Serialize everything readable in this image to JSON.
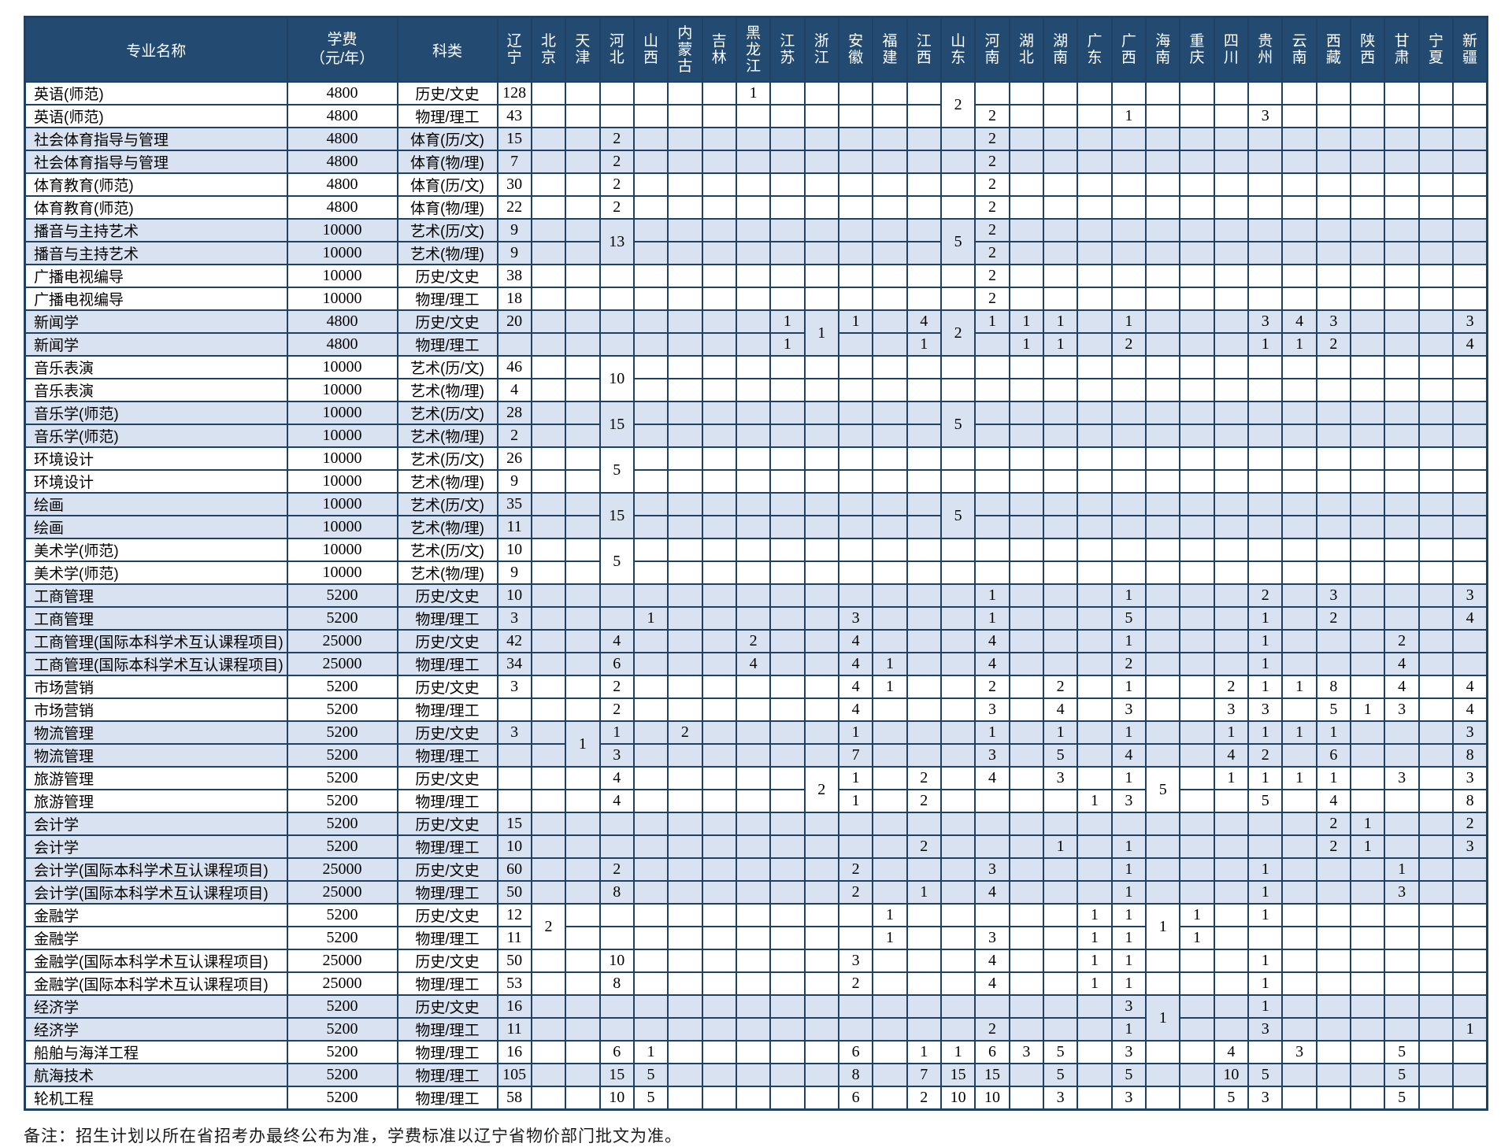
{
  "table": {
    "headers": {
      "major": "专业名称",
      "fee_line1": "学费",
      "fee_line2": "（元/年）",
      "category": "科类"
    },
    "provinces": [
      "辽宁",
      "北京",
      "天津",
      "河北",
      "山西",
      "内蒙古",
      "吉林",
      "黑龙江",
      "江苏",
      "浙江",
      "安徽",
      "福建",
      "江西",
      "山东",
      "河南",
      "湖北",
      "湖南",
      "广东",
      "广西",
      "海南",
      "重庆",
      "四川",
      "贵州",
      "云南",
      "西藏",
      "陕西",
      "甘肃",
      "宁夏",
      "新疆"
    ],
    "rows": [
      {
        "major": "英语(师范)",
        "fee": "4800",
        "category": "历史/文史",
        "shade": false,
        "cells": {
          "0": "128",
          "7": "1"
        },
        "merged": {
          "13": "2"
        },
        "skip": []
      },
      {
        "major": "英语(师范)",
        "fee": "4800",
        "category": "物理/理工",
        "shade": false,
        "cells": {
          "0": "43",
          "14": "2",
          "18": "1",
          "22": "3"
        },
        "merged": {},
        "skip": [
          13
        ]
      },
      {
        "major": "社会体育指导与管理",
        "fee": "4800",
        "category": "体育(历/文)",
        "shade": true,
        "cells": {
          "0": "15",
          "3": "2",
          "14": "2"
        },
        "merged": {},
        "skip": []
      },
      {
        "major": "社会体育指导与管理",
        "fee": "4800",
        "category": "体育(物/理)",
        "shade": true,
        "cells": {
          "0": "7",
          "3": "2",
          "14": "2"
        },
        "merged": {},
        "skip": []
      },
      {
        "major": "体育教育(师范)",
        "fee": "4800",
        "category": "体育(历/文)",
        "shade": false,
        "cells": {
          "0": "30",
          "3": "2",
          "14": "2"
        },
        "merged": {},
        "skip": []
      },
      {
        "major": "体育教育(师范)",
        "fee": "4800",
        "category": "体育(物/理)",
        "shade": false,
        "cells": {
          "0": "22",
          "3": "2",
          "14": "2"
        },
        "merged": {},
        "skip": []
      },
      {
        "major": "播音与主持艺术",
        "fee": "10000",
        "category": "艺术(历/文)",
        "shade": true,
        "cells": {
          "0": "9",
          "14": "2"
        },
        "merged": {
          "3": "13",
          "13": "5"
        },
        "skip": []
      },
      {
        "major": "播音与主持艺术",
        "fee": "10000",
        "category": "艺术(物/理)",
        "shade": true,
        "cells": {
          "0": "9",
          "14": "2"
        },
        "merged": {},
        "skip": [
          3,
          13
        ]
      },
      {
        "major": "广播电视编导",
        "fee": "10000",
        "category": "历史/文史",
        "shade": false,
        "cells": {
          "0": "38",
          "14": "2"
        },
        "merged": {},
        "skip": []
      },
      {
        "major": "广播电视编导",
        "fee": "10000",
        "category": "物理/理工",
        "shade": false,
        "cells": {
          "0": "18",
          "14": "2"
        },
        "merged": {},
        "skip": []
      },
      {
        "major": "新闻学",
        "fee": "4800",
        "category": "历史/文史",
        "shade": true,
        "cells": {
          "0": "20",
          "8": "1",
          "10": "1",
          "12": "4",
          "14": "1",
          "15": "1",
          "16": "1",
          "18": "1",
          "22": "3",
          "23": "4",
          "24": "3",
          "28": "3"
        },
        "merged": {
          "9": "1",
          "13": "2"
        },
        "skip": []
      },
      {
        "major": "新闻学",
        "fee": "4800",
        "category": "物理/理工",
        "shade": true,
        "cells": {
          "8": "1",
          "12": "1",
          "15": "1",
          "16": "1",
          "18": "2",
          "22": "1",
          "23": "1",
          "24": "2",
          "28": "4"
        },
        "merged": {},
        "skip": [
          9,
          13
        ]
      },
      {
        "major": "音乐表演",
        "fee": "10000",
        "category": "艺术(历/文)",
        "shade": false,
        "cells": {
          "0": "46"
        },
        "merged": {
          "3": "10"
        },
        "skip": []
      },
      {
        "major": "音乐表演",
        "fee": "10000",
        "category": "艺术(物/理)",
        "shade": false,
        "cells": {
          "0": "4"
        },
        "merged": {},
        "skip": [
          3
        ]
      },
      {
        "major": "音乐学(师范)",
        "fee": "10000",
        "category": "艺术(历/文)",
        "shade": true,
        "cells": {
          "0": "28"
        },
        "merged": {
          "3": "15",
          "13": "5"
        },
        "skip": []
      },
      {
        "major": "音乐学(师范)",
        "fee": "10000",
        "category": "艺术(物/理)",
        "shade": true,
        "cells": {
          "0": "2"
        },
        "merged": {},
        "skip": [
          3,
          13
        ]
      },
      {
        "major": "环境设计",
        "fee": "10000",
        "category": "艺术(历/文)",
        "shade": false,
        "cells": {
          "0": "26"
        },
        "merged": {
          "3": "5"
        },
        "skip": []
      },
      {
        "major": "环境设计",
        "fee": "10000",
        "category": "艺术(物/理)",
        "shade": false,
        "cells": {
          "0": "9"
        },
        "merged": {},
        "skip": [
          3
        ]
      },
      {
        "major": "绘画",
        "fee": "10000",
        "category": "艺术(历/文)",
        "shade": true,
        "cells": {
          "0": "35"
        },
        "merged": {
          "3": "15",
          "13": "5"
        },
        "skip": []
      },
      {
        "major": "绘画",
        "fee": "10000",
        "category": "艺术(物/理)",
        "shade": true,
        "cells": {
          "0": "11"
        },
        "merged": {},
        "skip": [
          3,
          13
        ]
      },
      {
        "major": "美术学(师范)",
        "fee": "10000",
        "category": "艺术(历/文)",
        "shade": false,
        "cells": {
          "0": "10"
        },
        "merged": {
          "3": "5"
        },
        "skip": []
      },
      {
        "major": "美术学(师范)",
        "fee": "10000",
        "category": "艺术(物/理)",
        "shade": false,
        "cells": {
          "0": "9"
        },
        "merged": {},
        "skip": [
          3
        ]
      },
      {
        "major": "工商管理",
        "fee": "5200",
        "category": "历史/文史",
        "shade": true,
        "cells": {
          "0": "10",
          "14": "1",
          "18": "1",
          "22": "2",
          "24": "3",
          "28": "3"
        },
        "merged": {},
        "skip": []
      },
      {
        "major": "工商管理",
        "fee": "5200",
        "category": "物理/理工",
        "shade": true,
        "cells": {
          "0": "3",
          "4": "1",
          "10": "3",
          "14": "1",
          "18": "5",
          "22": "1",
          "24": "2",
          "28": "4"
        },
        "merged": {},
        "skip": []
      },
      {
        "major": "工商管理(国际本科学术互认课程项目)",
        "fee": "25000",
        "category": "历史/文史",
        "shade": true,
        "cells": {
          "0": "42",
          "3": "4",
          "7": "2",
          "10": "4",
          "14": "4",
          "18": "1",
          "22": "1",
          "26": "2"
        },
        "merged": {},
        "skip": []
      },
      {
        "major": "工商管理(国际本科学术互认课程项目)",
        "fee": "25000",
        "category": "物理/理工",
        "shade": true,
        "cells": {
          "0": "34",
          "3": "6",
          "7": "4",
          "10": "4",
          "11": "1",
          "14": "4",
          "18": "2",
          "22": "1",
          "26": "4"
        },
        "merged": {},
        "skip": []
      },
      {
        "major": "市场营销",
        "fee": "5200",
        "category": "历史/文史",
        "shade": false,
        "cells": {
          "0": "3",
          "3": "2",
          "10": "4",
          "11": "1",
          "14": "2",
          "16": "2",
          "18": "1",
          "21": "2",
          "22": "1",
          "23": "1",
          "24": "8",
          "26": "4",
          "28": "4"
        },
        "merged": {},
        "skip": []
      },
      {
        "major": "市场营销",
        "fee": "5200",
        "category": "物理/理工",
        "shade": false,
        "cells": {
          "3": "2",
          "10": "4",
          "14": "3",
          "16": "4",
          "18": "3",
          "21": "3",
          "22": "3",
          "24": "5",
          "25": "1",
          "26": "3",
          "28": "4"
        },
        "merged": {},
        "skip": []
      },
      {
        "major": "物流管理",
        "fee": "5200",
        "category": "历史/文史",
        "shade": true,
        "cells": {
          "0": "3",
          "3": "1",
          "5": "2",
          "10": "1",
          "14": "1",
          "16": "1",
          "18": "1",
          "21": "1",
          "22": "1",
          "23": "1",
          "24": "1",
          "28": "3"
        },
        "merged": {
          "2": "1"
        },
        "skip": []
      },
      {
        "major": "物流管理",
        "fee": "5200",
        "category": "物理/理工",
        "shade": true,
        "cells": {
          "3": "3",
          "10": "7",
          "14": "3",
          "16": "5",
          "18": "4",
          "21": "4",
          "22": "2",
          "24": "6",
          "28": "8"
        },
        "merged": {},
        "skip": [
          2
        ]
      },
      {
        "major": "旅游管理",
        "fee": "5200",
        "category": "历史/文史",
        "shade": false,
        "cells": {
          "3": "4",
          "10": "1",
          "12": "2",
          "14": "4",
          "16": "3",
          "18": "1",
          "21": "1",
          "22": "1",
          "23": "1",
          "24": "1",
          "26": "3",
          "28": "3"
        },
        "merged": {
          "9": "2",
          "19": "5"
        },
        "skip": []
      },
      {
        "major": "旅游管理",
        "fee": "5200",
        "category": "物理/理工",
        "shade": false,
        "cells": {
          "3": "4",
          "10": "1",
          "12": "2",
          "17": "1",
          "18": "3",
          "22": "5",
          "24": "4",
          "28": "8"
        },
        "merged": {},
        "skip": [
          9,
          19
        ]
      },
      {
        "major": "会计学",
        "fee": "5200",
        "category": "历史/文史",
        "shade": true,
        "cells": {
          "0": "15",
          "24": "2",
          "25": "1",
          "28": "2"
        },
        "merged": {},
        "skip": []
      },
      {
        "major": "会计学",
        "fee": "5200",
        "category": "物理/理工",
        "shade": true,
        "cells": {
          "0": "10",
          "12": "2",
          "16": "1",
          "18": "1",
          "24": "2",
          "25": "1",
          "28": "3"
        },
        "merged": {},
        "skip": []
      },
      {
        "major": "会计学(国际本科学术互认课程项目)",
        "fee": "25000",
        "category": "历史/文史",
        "shade": true,
        "cells": {
          "0": "60",
          "3": "2",
          "10": "2",
          "14": "3",
          "18": "1",
          "22": "1",
          "26": "1"
        },
        "merged": {},
        "skip": []
      },
      {
        "major": "会计学(国际本科学术互认课程项目)",
        "fee": "25000",
        "category": "物理/理工",
        "shade": true,
        "cells": {
          "0": "50",
          "3": "8",
          "10": "2",
          "12": "1",
          "14": "4",
          "18": "1",
          "22": "1",
          "26": "3"
        },
        "merged": {},
        "skip": []
      },
      {
        "major": "金融学",
        "fee": "5200",
        "category": "历史/文史",
        "shade": false,
        "cells": {
          "0": "12",
          "11": "1",
          "17": "1",
          "18": "1",
          "20": "1",
          "22": "1"
        },
        "merged": {
          "1": "2",
          "19": "1"
        },
        "skip": []
      },
      {
        "major": "金融学",
        "fee": "5200",
        "category": "物理/理工",
        "shade": false,
        "cells": {
          "0": "11",
          "11": "1",
          "14": "3",
          "17": "1",
          "18": "1",
          "20": "1"
        },
        "merged": {},
        "skip": [
          1,
          19
        ]
      },
      {
        "major": "金融学(国际本科学术互认课程项目)",
        "fee": "25000",
        "category": "历史/文史",
        "shade": false,
        "cells": {
          "0": "50",
          "3": "10",
          "10": "3",
          "14": "4",
          "17": "1",
          "18": "1",
          "22": "1"
        },
        "merged": {},
        "skip": []
      },
      {
        "major": "金融学(国际本科学术互认课程项目)",
        "fee": "25000",
        "category": "物理/理工",
        "shade": false,
        "cells": {
          "0": "53",
          "3": "8",
          "10": "2",
          "14": "4",
          "17": "1",
          "18": "1",
          "22": "1"
        },
        "merged": {},
        "skip": []
      },
      {
        "major": "经济学",
        "fee": "5200",
        "category": "历史/文史",
        "shade": true,
        "cells": {
          "0": "16",
          "18": "3",
          "22": "1"
        },
        "merged": {
          "19": "1"
        },
        "skip": []
      },
      {
        "major": "经济学",
        "fee": "5200",
        "category": "物理/理工",
        "shade": true,
        "cells": {
          "0": "11",
          "14": "2",
          "18": "1",
          "22": "3",
          "28": "1"
        },
        "merged": {},
        "skip": [
          19
        ]
      },
      {
        "major": "船舶与海洋工程",
        "fee": "5200",
        "category": "物理/理工",
        "shade": false,
        "cells": {
          "0": "16",
          "3": "6",
          "4": "1",
          "10": "6",
          "12": "1",
          "13": "1",
          "14": "6",
          "15": "3",
          "16": "5",
          "18": "3",
          "21": "4",
          "23": "3",
          "26": "5"
        },
        "merged": {},
        "skip": []
      },
      {
        "major": "航海技术",
        "fee": "5200",
        "category": "物理/理工",
        "shade": true,
        "cells": {
          "0": "105",
          "3": "15",
          "4": "5",
          "10": "8",
          "12": "7",
          "13": "15",
          "14": "15",
          "16": "5",
          "18": "5",
          "21": "10",
          "22": "5",
          "26": "5"
        },
        "merged": {},
        "skip": []
      },
      {
        "major": "轮机工程",
        "fee": "5200",
        "category": "物理/理工",
        "shade": false,
        "cells": {
          "0": "58",
          "3": "10",
          "4": "5",
          "10": "6",
          "12": "2",
          "13": "10",
          "14": "10",
          "16": "3",
          "18": "3",
          "21": "5",
          "22": "3",
          "26": "5"
        },
        "merged": {},
        "skip": []
      }
    ]
  },
  "note": "备注：招生计划以所在省招考办最终公布为准，学费标准以辽宁省物价部门批文为准。",
  "colors": {
    "header_bg": "#234a70",
    "header_text": "#ffffff",
    "stripe": "#d9e2f0",
    "border": "#1f4163"
  }
}
